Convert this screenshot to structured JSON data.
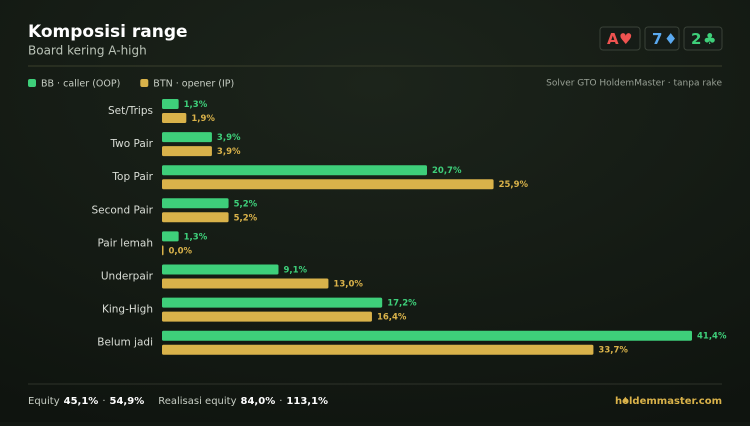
{
  "chart_data": {
    "type": "bar",
    "orientation": "horizontal",
    "title": "Komposisi range",
    "subtitle": "Board kering A-high",
    "source": "Solver GTO HoldemMaster · tanpa rake",
    "categories": [
      "Set/Trips",
      "Two Pair",
      "Top Pair",
      "Second Pair",
      "Pair lemah",
      "Underpair",
      "King-High",
      "Belum jadi"
    ],
    "series": [
      {
        "name": "BB · caller (OOP)",
        "color": "#3ecf7a",
        "values": [
          1.3,
          3.9,
          20.7,
          5.2,
          1.3,
          9.1,
          17.2,
          41.4
        ],
        "value_labels": [
          "1,3%",
          "3,9%",
          "20,7%",
          "5,2%",
          "1,3%",
          "9,1%",
          "17,2%",
          "41,4%"
        ]
      },
      {
        "name": "BTN · opener (IP)",
        "color": "#d9b24a",
        "values": [
          1.9,
          3.9,
          25.9,
          5.2,
          0.0,
          13.0,
          16.4,
          33.7
        ],
        "value_labels": [
          "1,9%",
          "3,9%",
          "25,9%",
          "5,2%",
          "0,0%",
          "13,0%",
          "16,4%",
          "33,7%"
        ]
      }
    ],
    "legend": "top-left"
  },
  "cards": [
    {
      "rank": "A",
      "suit": "♥",
      "color": "#ef5350"
    },
    {
      "rank": "7",
      "suit": "♦",
      "color": "#5aa9f0"
    },
    {
      "rank": "2",
      "suit": "♣",
      "color": "#3ecf7a"
    }
  ],
  "footer": {
    "items": [
      {
        "label": "Equity",
        "values": [
          "45,1%",
          "54,9%"
        ]
      },
      {
        "label": "Realisasi equity",
        "values": [
          "84,0%",
          "113,1%"
        ]
      }
    ],
    "separator": "·",
    "brand": "holdemmaster.com"
  }
}
